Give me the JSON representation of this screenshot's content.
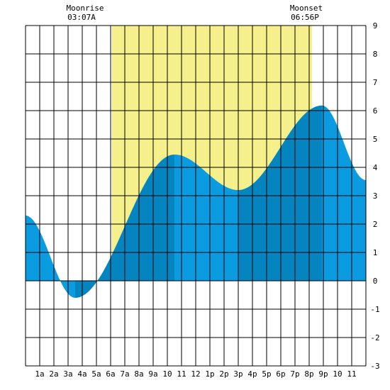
{
  "annotations": {
    "moonrise": {
      "label": "Moonrise",
      "time": "03:07A"
    },
    "moonset": {
      "label": "Moonset",
      "time": "06:56P"
    }
  },
  "colors": {
    "daylight": "#f5ef8c",
    "tide_light": "#0b9be0",
    "tide_dark": "#0585c0",
    "grid": "#000000",
    "background": "#ffffff"
  },
  "chart_data": {
    "type": "area",
    "title": "",
    "xlabel": "",
    "ylabel": "",
    "xlim": [
      0,
      24
    ],
    "ylim": [
      -3,
      9
    ],
    "x_tick_labels": [
      "1a",
      "2a",
      "3a",
      "4a",
      "5a",
      "6a",
      "7a",
      "8a",
      "9a",
      "10",
      "11",
      "12",
      "1p",
      "2p",
      "3p",
      "4p",
      "5p",
      "6p",
      "7p",
      "8p",
      "9p",
      "10",
      "11"
    ],
    "y_tick_labels": [
      "-3",
      "-2",
      "-1",
      "0",
      "1",
      "2",
      "3",
      "4",
      "5",
      "6",
      "7",
      "8",
      "9"
    ],
    "daylight_span": [
      6.1,
      20.2
    ],
    "tide_extremes": [
      {
        "hour": 0.0,
        "height": 2.3
      },
      {
        "hour": 3.5,
        "height": -0.6
      },
      {
        "hour": 10.5,
        "height": 4.45
      },
      {
        "hour": 15.0,
        "height": 3.2
      },
      {
        "hour": 20.9,
        "height": 6.18
      },
      {
        "hour": 24.0,
        "height": 3.55
      }
    ],
    "shade_bands": [
      {
        "start": 0.0,
        "end": 3.5,
        "shade": "light"
      },
      {
        "start": 3.5,
        "end": 5.0,
        "shade": "dark"
      },
      {
        "start": 5.0,
        "end": 10.5,
        "shade": "dark"
      },
      {
        "start": 10.5,
        "end": 15.0,
        "shade": "light"
      },
      {
        "start": 15.0,
        "end": 20.9,
        "shade": "dark"
      },
      {
        "start": 20.9,
        "end": 24.0,
        "shade": "light"
      }
    ],
    "grid": true
  }
}
